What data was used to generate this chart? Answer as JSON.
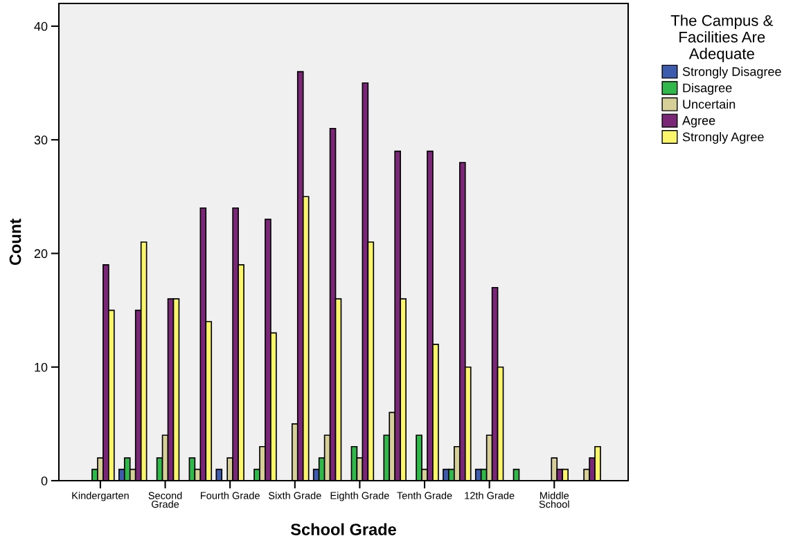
{
  "chart_data": {
    "type": "bar",
    "xlabel": "School Grade",
    "ylabel": "Count",
    "legend_title": "The Campus &\nFacilities Are\nAdequate",
    "legend": "right",
    "categories": [
      "Kindergarten",
      null,
      "Second\nGrade",
      null,
      "Fourth Grade",
      null,
      "Sixth Grade",
      null,
      "Eighth Grade",
      null,
      "Tenth Grade",
      null,
      "12th Grade",
      null,
      "Middle\nSchool",
      null
    ],
    "series": [
      {
        "name": "Strongly Disagree",
        "color": "#3e5cad",
        "values": [
          0,
          1,
          0,
          0,
          1,
          0,
          0,
          1,
          0,
          0,
          0,
          1,
          1,
          0,
          0,
          0
        ]
      },
      {
        "name": "Disagree",
        "color": "#30b84a",
        "values": [
          1,
          2,
          2,
          2,
          0,
          1,
          0,
          2,
          3,
          4,
          4,
          1,
          1,
          1,
          0,
          0
        ]
      },
      {
        "name": "Uncertain",
        "color": "#d6cf98",
        "values": [
          2,
          1,
          4,
          1,
          2,
          3,
          5,
          4,
          2,
          6,
          1,
          3,
          4,
          0,
          2,
          1
        ]
      },
      {
        "name": "Agree",
        "color": "#7b2777",
        "values": [
          19,
          15,
          16,
          24,
          24,
          23,
          36,
          31,
          35,
          29,
          29,
          28,
          17,
          0,
          1,
          2
        ]
      },
      {
        "name": "Strongly Agree",
        "color": "#fbf56c",
        "values": [
          15,
          21,
          16,
          14,
          19,
          13,
          25,
          16,
          21,
          16,
          12,
          10,
          10,
          0,
          1,
          3
        ]
      }
    ],
    "ylim": [
      0,
      42
    ],
    "yticks": [
      0,
      10,
      20,
      30,
      40
    ],
    "grid": false
  }
}
